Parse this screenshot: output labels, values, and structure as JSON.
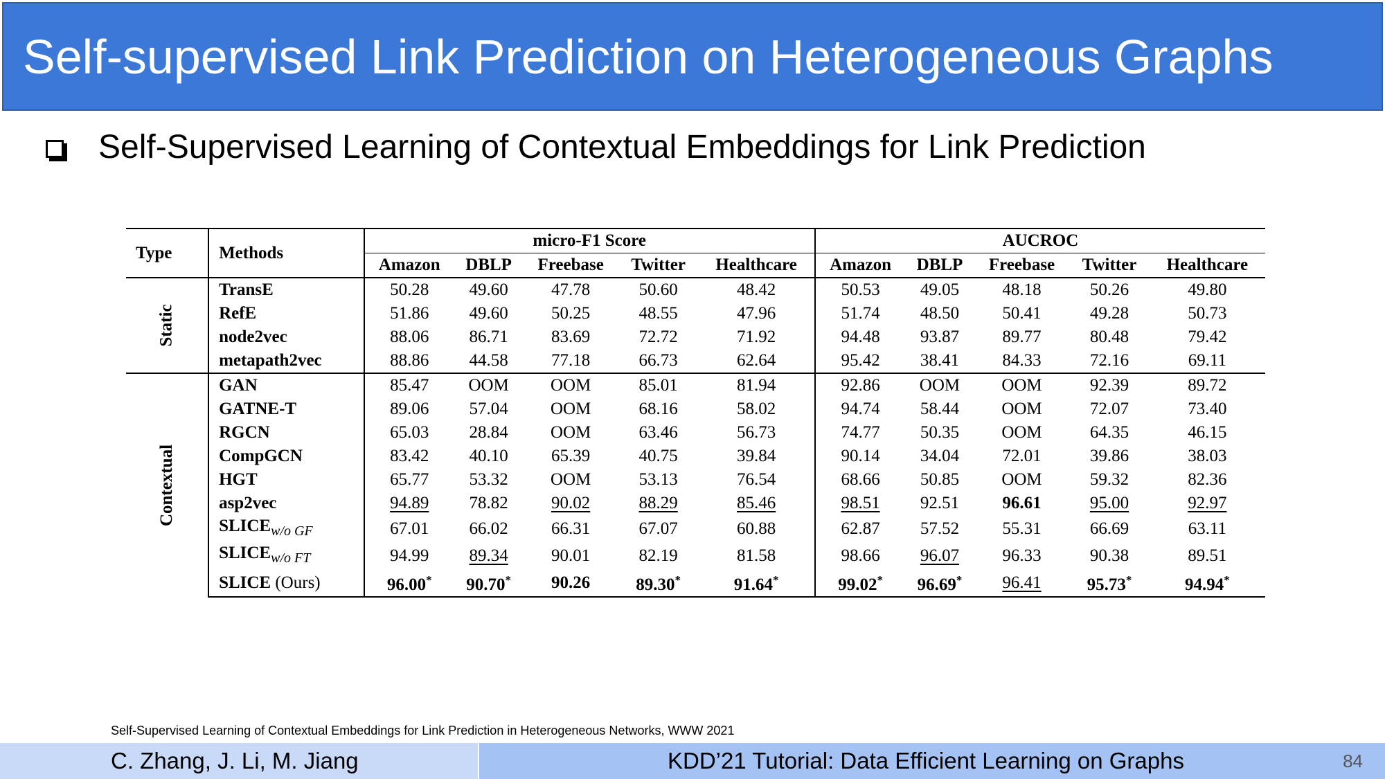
{
  "slide": {
    "title": "Self-supervised Link Prediction on Heterogeneous Graphs",
    "bullet": "Self-Supervised Learning of Contextual Embeddings for Link Prediction",
    "citation": "Self-Supervised Learning of Contextual Embeddings for Link Prediction in Heterogeneous Networks, WWW 2021",
    "footer_authors": "C. Zhang, J. Li, M. Jiang",
    "footer_tutorial": "KDD’21 Tutorial: Data Efficient Learning on Graphs",
    "page_number": "84"
  },
  "table": {
    "type_header": "Type",
    "methods_header": "Methods",
    "group1": "micro-F1 Score",
    "group2": "AUCROC",
    "datasets": [
      "Amazon",
      "DBLP",
      "Freebase",
      "Twitter",
      "Healthcare",
      "Amazon",
      "DBLP",
      "Freebase",
      "Twitter",
      "Healthcare"
    ],
    "groups": [
      {
        "label": "Static",
        "rows": [
          {
            "method": "TransE",
            "values": [
              "50.28",
              "49.60",
              "47.78",
              "50.60",
              "48.42",
              "50.53",
              "49.05",
              "48.18",
              "50.26",
              "49.80"
            ]
          },
          {
            "method": "RefE",
            "values": [
              "51.86",
              "49.60",
              "50.25",
              "48.55",
              "47.96",
              "51.74",
              "48.50",
              "50.41",
              "49.28",
              "50.73"
            ]
          },
          {
            "method": "node2vec",
            "values": [
              "88.06",
              "86.71",
              "83.69",
              "72.72",
              "71.92",
              "94.48",
              "93.87",
              "89.77",
              "80.48",
              "79.42"
            ]
          },
          {
            "method": "metapath2vec",
            "values": [
              "88.86",
              "44.58",
              "77.18",
              "66.73",
              "62.64",
              "95.42",
              "38.41",
              "84.33",
              "72.16",
              "69.11"
            ]
          }
        ]
      },
      {
        "label": "Contextual",
        "rows": [
          {
            "method": "GAN",
            "values": [
              "85.47",
              "OOM",
              "OOM",
              "85.01",
              "81.94",
              "92.86",
              "OOM",
              "OOM",
              "92.39",
              "89.72"
            ]
          },
          {
            "method": "GATNE-T",
            "values": [
              "89.06",
              "57.04",
              "OOM",
              "68.16",
              "58.02",
              "94.74",
              "58.44",
              "OOM",
              "72.07",
              "73.40"
            ]
          },
          {
            "method": "RGCN",
            "values": [
              "65.03",
              "28.84",
              "OOM",
              "63.46",
              "56.73",
              "74.77",
              "50.35",
              "OOM",
              "64.35",
              "46.15"
            ]
          },
          {
            "method": "CompGCN",
            "values": [
              "83.42",
              "40.10",
              "65.39",
              "40.75",
              "39.84",
              "90.14",
              "34.04",
              "72.01",
              "39.86",
              "38.03"
            ]
          },
          {
            "method": "HGT",
            "values": [
              "65.77",
              "53.32",
              "OOM",
              "53.13",
              "76.54",
              "68.66",
              "50.85",
              "OOM",
              "59.32",
              "82.36"
            ]
          },
          {
            "method": "asp2vec",
            "values": [
              "94.89",
              "78.82",
              "90.02",
              "88.29",
              "85.46",
              "98.51",
              "92.51",
              "96.61",
              "95.00",
              "92.97"
            ]
          },
          {
            "method": "SLICE",
            "sub": "w/o GF",
            "values": [
              "67.01",
              "66.02",
              "66.31",
              "67.07",
              "60.88",
              "62.87",
              "57.52",
              "55.31",
              "66.69",
              "63.11"
            ]
          },
          {
            "method": "SLICE",
            "sub": "w/o FT",
            "values": [
              "94.99",
              "89.34",
              "90.01",
              "82.19",
              "81.58",
              "98.66",
              "96.07",
              "96.33",
              "90.38",
              "89.51"
            ]
          },
          {
            "method": "SLICE",
            "method_suffix": " (Ours)",
            "values": [
              "96.00",
              "90.70",
              "90.26",
              "89.30",
              "91.64",
              "99.02",
              "96.69",
              "96.41",
              "95.73",
              "94.94"
            ]
          }
        ]
      }
    ]
  }
}
